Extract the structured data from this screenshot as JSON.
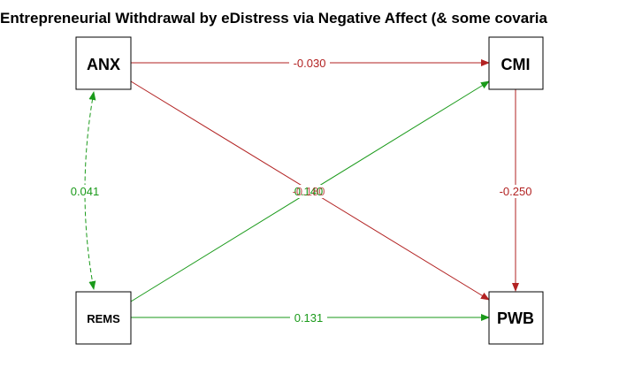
{
  "title": "Entrepreneurial Withdrawal by eDistress via Negative Affect (& some covaria",
  "colors": {
    "negative": "#b22222",
    "positive": "#1a9a1a",
    "node_border": "#000000",
    "node_fill": "#ffffff"
  },
  "nodes": {
    "anx": {
      "label": "ANX"
    },
    "cmi": {
      "label": "CMI"
    },
    "rems": {
      "label": "REMS"
    },
    "pwb": {
      "label": "PWB"
    }
  },
  "edges": [
    {
      "id": "anx-cmi",
      "from": "anx",
      "to": "cmi",
      "label": "-0.030",
      "sign": "negative",
      "style": "solid",
      "direction": "forward"
    },
    {
      "id": "anx-pwb",
      "from": "anx",
      "to": "pwb",
      "label": "-0.180",
      "sign": "negative",
      "style": "solid",
      "direction": "forward"
    },
    {
      "id": "rems-cmi",
      "from": "rems",
      "to": "cmi",
      "label": "0.140",
      "sign": "positive",
      "style": "solid",
      "direction": "forward"
    },
    {
      "id": "cmi-pwb",
      "from": "cmi",
      "to": "pwb",
      "label": "-0.250",
      "sign": "negative",
      "style": "solid",
      "direction": "forward"
    },
    {
      "id": "rems-pwb",
      "from": "rems",
      "to": "pwb",
      "label": "0.131",
      "sign": "positive",
      "style": "solid",
      "direction": "forward"
    },
    {
      "id": "anx-rems",
      "from": "anx",
      "to": "rems",
      "label": "0.041",
      "sign": "positive",
      "style": "dashed",
      "direction": "both"
    }
  ]
}
